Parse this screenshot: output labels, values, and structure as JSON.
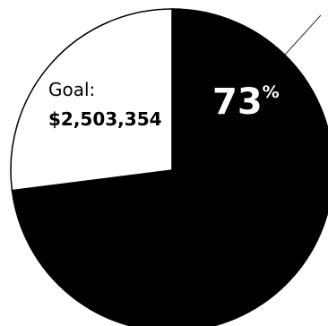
{
  "chart_data": {
    "type": "pie",
    "slices": [
      {
        "value": 73,
        "color": "#000000"
      },
      {
        "value": 27,
        "color": "#ffffff"
      }
    ],
    "percent_value": "73",
    "percent_sign": "%",
    "goal_label": "Goal:",
    "goal_value": "$2,503,354",
    "outline_color": "#000000"
  }
}
